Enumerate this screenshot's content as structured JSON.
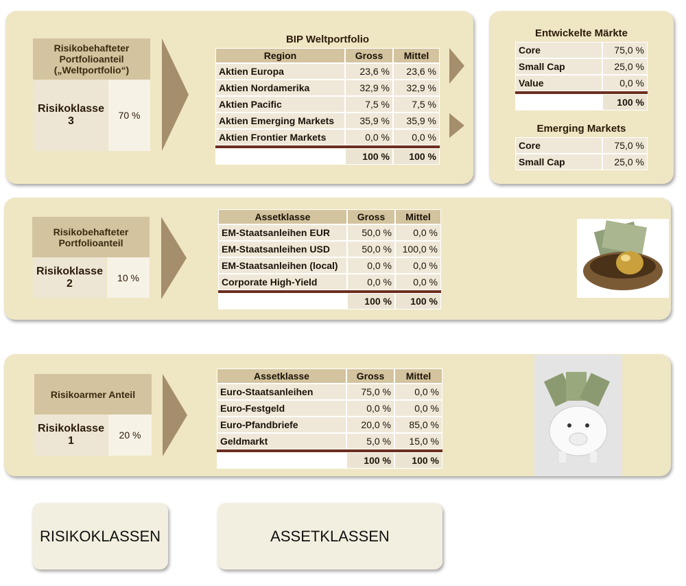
{
  "panels": [
    {
      "side": {
        "title": "Risikobehafteter Portfolioanteil („Weltportfolio“)",
        "class": "Risikoklasse 3",
        "share": "70 %"
      },
      "table": {
        "title": "BIP Weltportfolio",
        "header": [
          "Region",
          "Gross",
          "Mittel"
        ],
        "rows": [
          [
            "Aktien Europa",
            "23,6 %",
            "23,6 %"
          ],
          [
            "Aktien Nordamerika",
            "32,9 %",
            "32,9 %"
          ],
          [
            "Aktien Pacific",
            "7,5 %",
            "7,5 %"
          ],
          [
            "Aktien Emerging Markets",
            "35,9 %",
            "35,9 %"
          ],
          [
            "Aktien Frontier Markets",
            "0,0 %",
            "0,0 %"
          ]
        ],
        "total": [
          "100 %",
          "100 %"
        ]
      }
    },
    {
      "side": {
        "title": "Risikobehafteter Portfolioanteil",
        "class": "Risikoklasse 2",
        "share": "10 %"
      },
      "table": {
        "header": [
          "Assetklasse",
          "Gross",
          "Mittel"
        ],
        "rows": [
          [
            "EM-Staatsanleihen EUR",
            "50,0 %",
            "0,0 %"
          ],
          [
            "EM-Staatsanleihen USD",
            "50,0 %",
            "100,0 %"
          ],
          [
            "EM-Staatsanleihen (local)",
            "0,0 %",
            "0,0 %"
          ],
          [
            "Corporate High-Yield",
            "0,0 %",
            "0,0 %"
          ]
        ],
        "total": [
          "100 %",
          "100 %"
        ]
      }
    },
    {
      "side": {
        "title": "Risikoarmer Anteil",
        "class": "Risikoklasse 1",
        "share": "20 %"
      },
      "table": {
        "header": [
          "Assetklasse",
          "Gross",
          "Mittel"
        ],
        "rows": [
          [
            "Euro-Staatsanleihen",
            "75,0 %",
            "0,0 %"
          ],
          [
            "Euro-Festgeld",
            "0,0 %",
            "0,0 %"
          ],
          [
            "Euro-Pfandbriefe",
            "20,0 %",
            "85,0 %"
          ],
          [
            "Geldmarkt",
            "5,0 %",
            "15,0 %"
          ]
        ],
        "total": [
          "100 %",
          "100 %"
        ]
      }
    }
  ],
  "side_tables": [
    {
      "title": "Entwickelte Märkte",
      "rows": [
        [
          "Core",
          "75,0 %"
        ],
        [
          "Small Cap",
          "25,0 %"
        ],
        [
          "Value",
          "0,0 %"
        ]
      ],
      "total": [
        "100 %"
      ]
    },
    {
      "title": "Emerging Markets",
      "rows": [
        [
          "Core",
          "75,0 %"
        ],
        [
          "Small Cap",
          "25,0 %"
        ]
      ]
    }
  ],
  "footer": [
    "RISIKOKLASSEN",
    "ASSETKLASSEN"
  ]
}
